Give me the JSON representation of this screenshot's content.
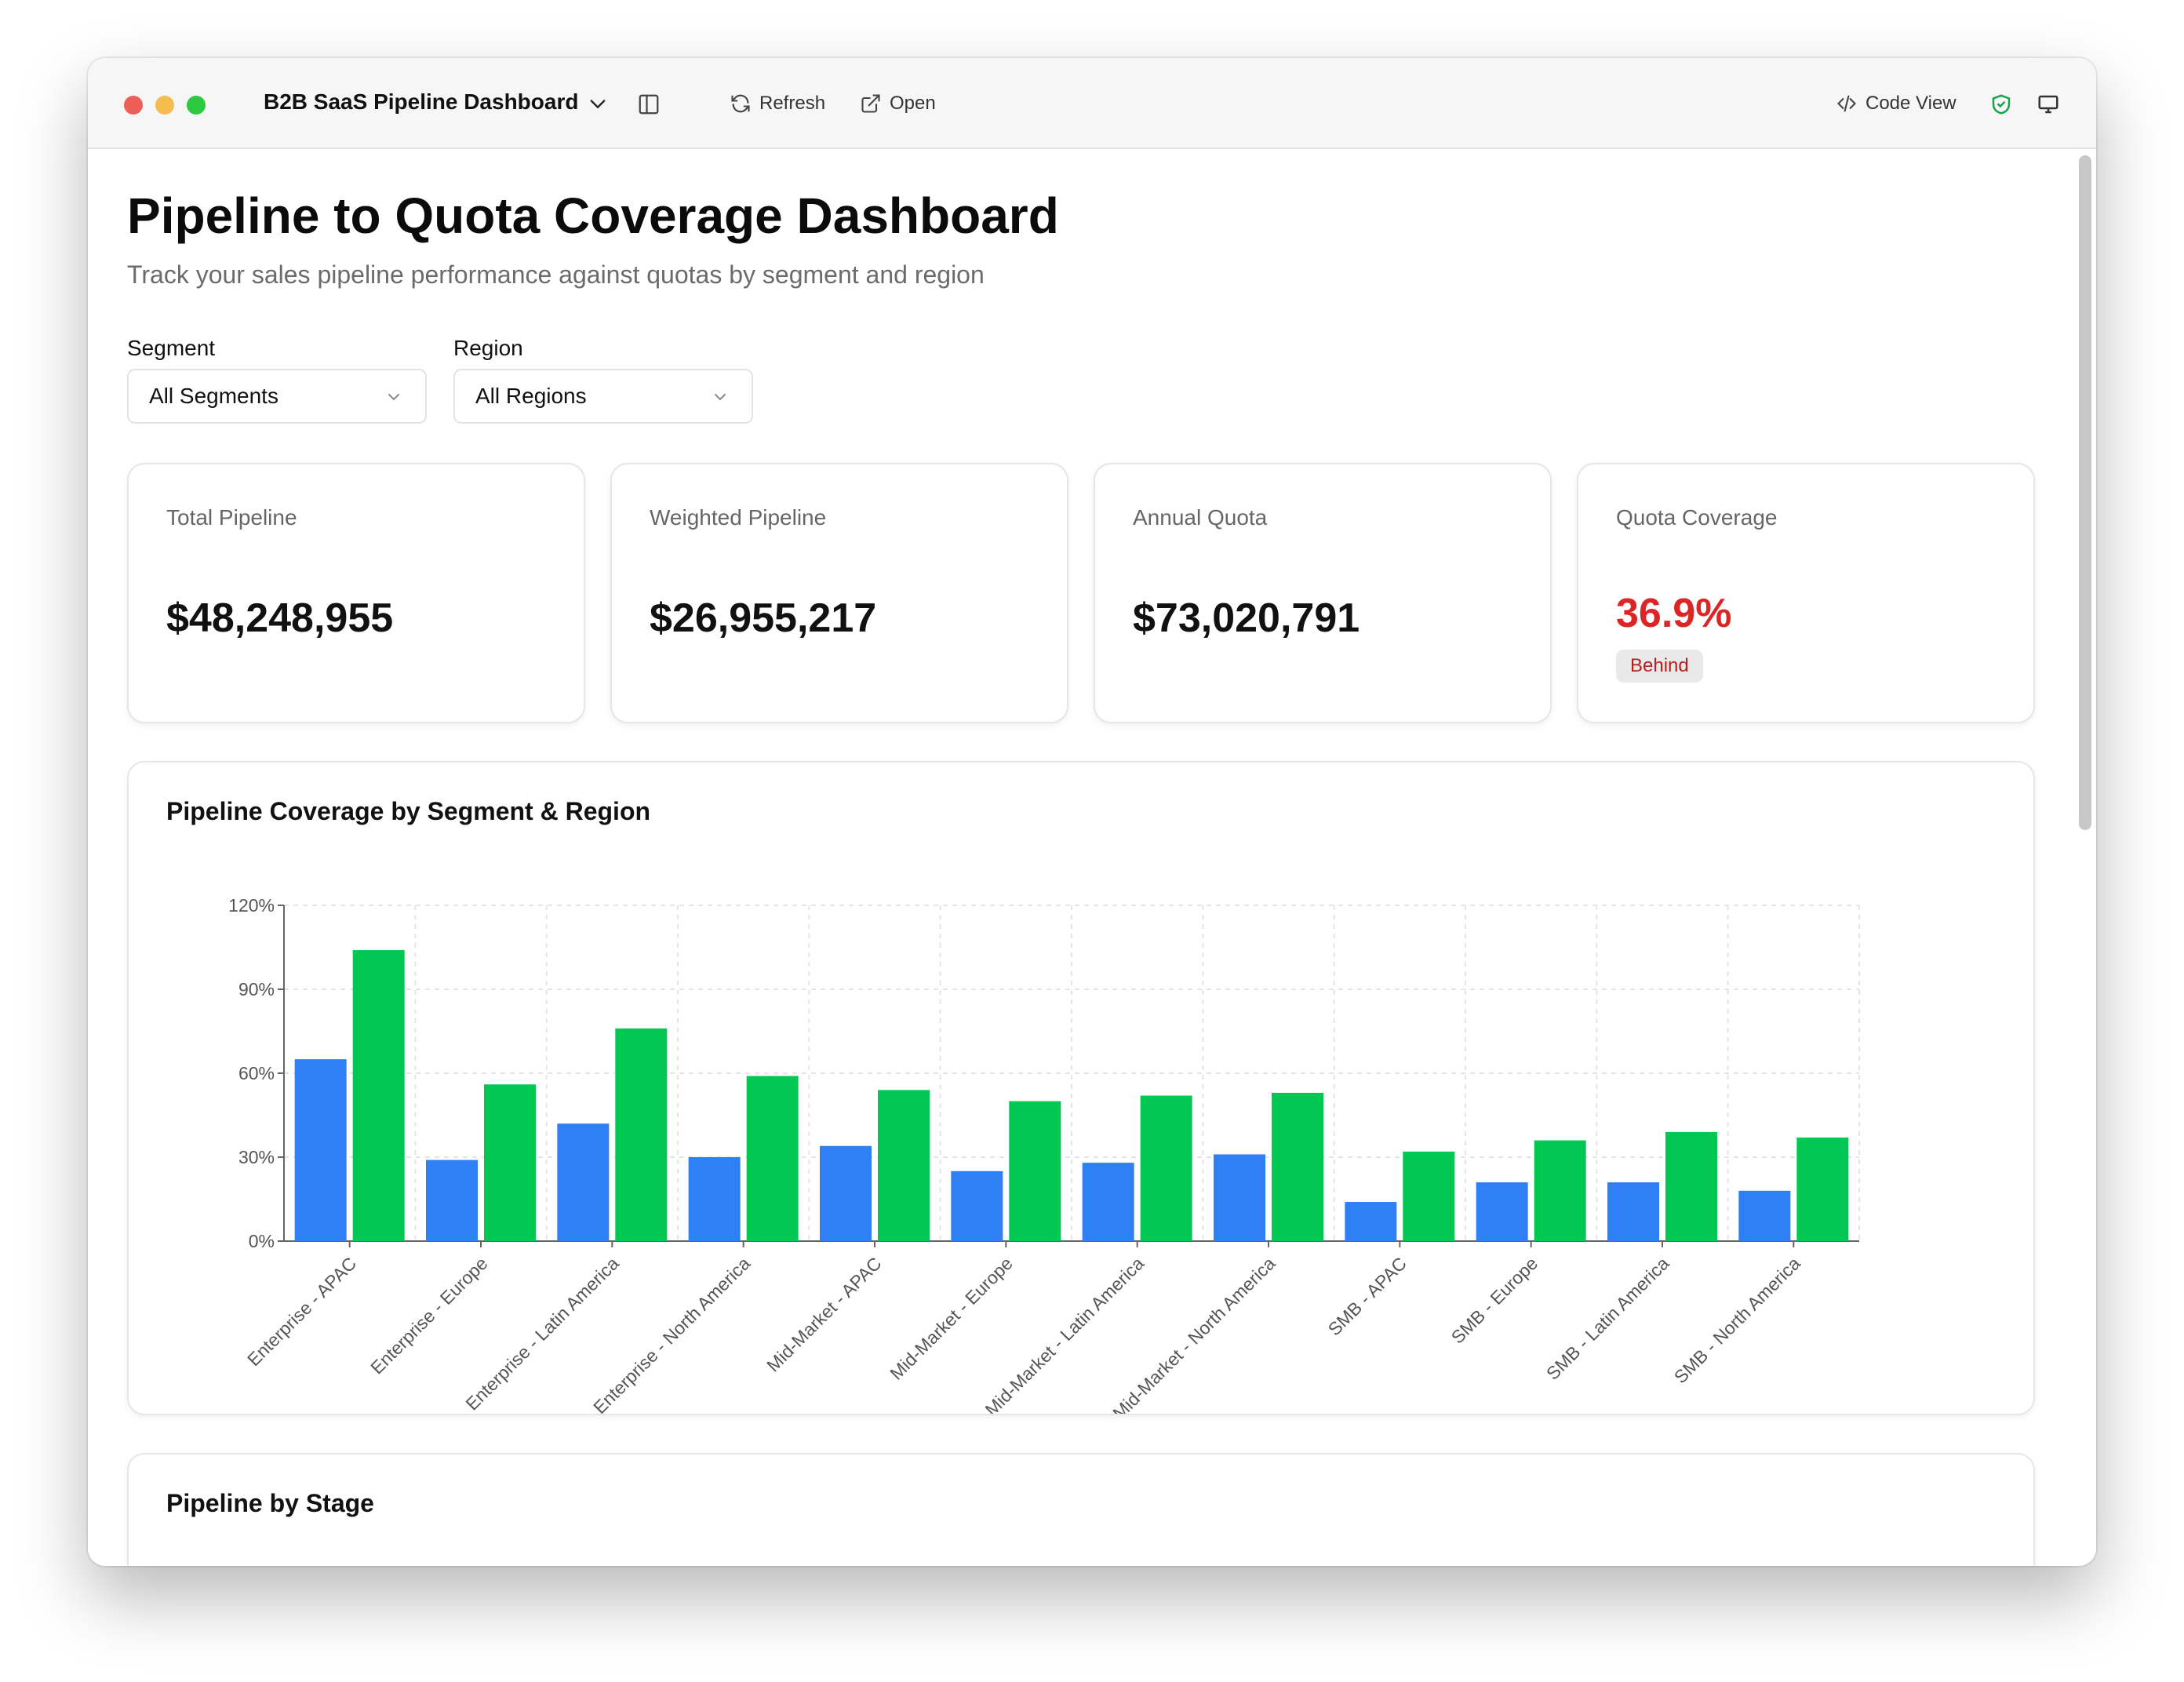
{
  "window": {
    "title": "B2B SaaS Pipeline Dashboard",
    "toolbar": {
      "refresh_label": "Refresh",
      "open_label": "Open",
      "code_view_label": "Code View"
    },
    "icons": [
      "chevron-down-icon",
      "sidebar-toggle-icon",
      "refresh-icon",
      "external-link-icon",
      "code-icon",
      "shield-check-icon",
      "monitor-icon"
    ]
  },
  "page": {
    "title": "Pipeline to Quota Coverage Dashboard",
    "subtitle": "Track your sales pipeline performance against quotas by segment and region"
  },
  "filters": {
    "segment": {
      "label": "Segment",
      "value": "All Segments"
    },
    "region": {
      "label": "Region",
      "value": "All Regions"
    }
  },
  "kpis": [
    {
      "label": "Total Pipeline",
      "value": "$48,248,955"
    },
    {
      "label": "Weighted Pipeline",
      "value": "$26,955,217"
    },
    {
      "label": "Annual Quota",
      "value": "$73,020,791"
    },
    {
      "label": "Quota Coverage",
      "value": "36.9%",
      "badge": "Behind",
      "color": "#dc2626"
    }
  ],
  "coverage_panel": {
    "title": "Pipeline Coverage by Segment & Region"
  },
  "stage_panel": {
    "title": "Pipeline by Stage"
  },
  "colors": {
    "series_blue": "#2f7ff5",
    "series_green": "#00c853",
    "danger": "#dc2626"
  },
  "chart_data": {
    "type": "bar",
    "title": "Pipeline Coverage by Segment & Region",
    "categories": [
      "Enterprise - APAC",
      "Enterprise - Europe",
      "Enterprise - Latin America",
      "Enterprise - North America",
      "Mid-Market - APAC",
      "Mid-Market - Europe",
      "Mid-Market - Latin America",
      "Mid-Market - North America",
      "SMB - APAC",
      "SMB - Europe",
      "SMB - Latin America",
      "SMB - North America"
    ],
    "series": [
      {
        "values": [
          65,
          29,
          42,
          30,
          34,
          25,
          28,
          31,
          14,
          21,
          21,
          18
        ],
        "color": "#2f7ff5"
      },
      {
        "values": [
          104,
          56,
          76,
          59,
          54,
          50,
          52,
          53,
          32,
          36,
          39,
          37
        ],
        "color": "#00c853"
      }
    ],
    "yticks": [
      "0%",
      "30%",
      "60%",
      "90%",
      "120%"
    ],
    "ylim": [
      0,
      120
    ],
    "grid": true
  }
}
